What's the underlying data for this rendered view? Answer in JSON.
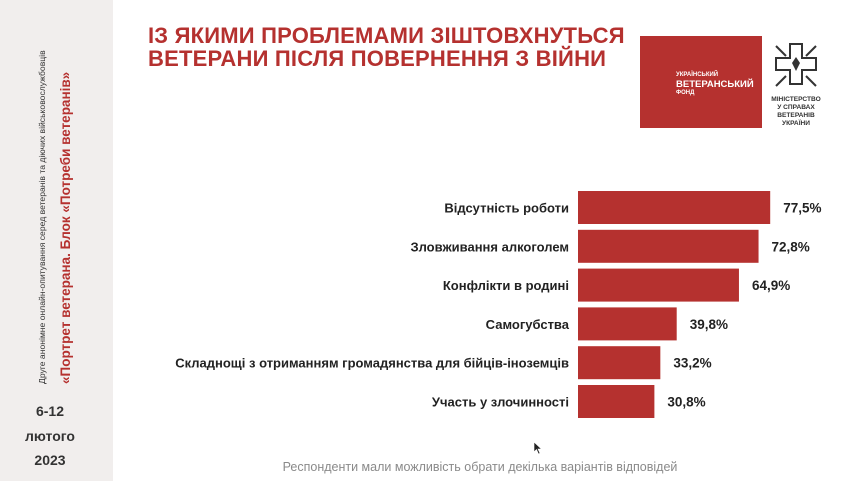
{
  "sidebar": {
    "vertical_title": "«Портрет ветерана. Блок «Потреби ветеранів»",
    "vertical_subtitle": "Друге анонімне онлайн-опитування серед ветеранів та діючих військовослужбовців",
    "date_line1": "6-12",
    "date_line2": "лютого",
    "date_line3": "2023"
  },
  "title_line1": "ІЗ ЯКИМИ ПРОБЛЕМАМИ ЗІШТОВХНУТЬСЯ",
  "title_line2": "ВЕТЕРАНИ ПІСЛЯ ПОВЕРНЕННЯ З ВІЙНИ",
  "logo_fund": {
    "line1": "УКРАЇНСЬКИЙ",
    "line2": "ВЕТЕРАНСЬКИЙ",
    "line3": "ФОНД"
  },
  "logo_ministry": {
    "line1": "МІНІСТЕРСТВО",
    "line2": "У СПРАВАХ",
    "line3": "ВЕТЕРАНІВ",
    "line4": "УКРАЇНИ"
  },
  "footnote": "Респонденти мали можливість обрати декілька варіантів відповідей",
  "colors": {
    "accent": "#b5312f",
    "sidebar_bg": "#f1eeed"
  },
  "chart_data": {
    "type": "bar",
    "orientation": "horizontal",
    "categories": [
      "Відсутність роботи",
      "Зловживання алкоголем",
      "Конфлікти в родині",
      "Самогубства",
      "Складнощі з отриманням громадянства для бійців-іноземців",
      "Участь у злочинності"
    ],
    "values": [
      77.5,
      72.8,
      64.9,
      39.8,
      33.2,
      30.8
    ],
    "value_labels": [
      "77,5%",
      "72,8%",
      "64,9%",
      "39,8%",
      "33,2%",
      "30,8%"
    ],
    "xlim": [
      0,
      100
    ],
    "grid": false,
    "legend": "none"
  }
}
